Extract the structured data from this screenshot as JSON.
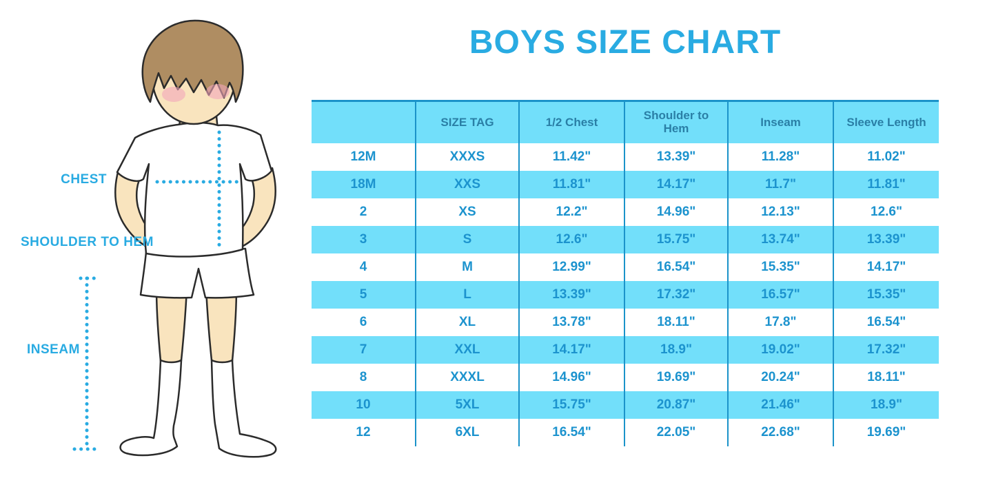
{
  "title": "BOYS SIZE CHART",
  "figure": {
    "labels": {
      "chest": "CHEST",
      "shoulder_to_hem": "SHOULDER TO HEM",
      "inseam": "INSEAM"
    }
  },
  "colors": {
    "accent_blue": "#29ABE2",
    "stripe_blue": "#72DFFA",
    "grid_blue": "#1B93C9",
    "header_text": "#2A7FA6",
    "cell_text": "#1C93CE",
    "skin": "#F9E4BE",
    "hair": "#AF8D62",
    "blush": "#F2A7BA"
  },
  "chart_data": {
    "type": "table",
    "title": "BOYS SIZE CHART",
    "columns": [
      "",
      "SIZE TAG",
      "1/2 Chest",
      "Shoulder to Hem",
      "Inseam",
      "Sleeve Length"
    ],
    "rows": [
      [
        "12M",
        "XXXS",
        "11.42\"",
        "13.39\"",
        "11.28\"",
        "11.02\""
      ],
      [
        "18M",
        "XXS",
        "11.81\"",
        "14.17\"",
        "11.7\"",
        "11.81\""
      ],
      [
        "2",
        "XS",
        "12.2\"",
        "14.96\"",
        "12.13\"",
        "12.6\""
      ],
      [
        "3",
        "S",
        "12.6\"",
        "15.75\"",
        "13.74\"",
        "13.39\""
      ],
      [
        "4",
        "M",
        "12.99\"",
        "16.54\"",
        "15.35\"",
        "14.17\""
      ],
      [
        "5",
        "L",
        "13.39\"",
        "17.32\"",
        "16.57\"",
        "15.35\""
      ],
      [
        "6",
        "XL",
        "13.78\"",
        "18.11\"",
        "17.8\"",
        "16.54\""
      ],
      [
        "7",
        "XXL",
        "14.17\"",
        "18.9\"",
        "19.02\"",
        "17.32\""
      ],
      [
        "8",
        "XXXL",
        "14.96\"",
        "19.69\"",
        "20.24\"",
        "18.11\""
      ],
      [
        "10",
        "5XL",
        "15.75\"",
        "20.87\"",
        "21.46\"",
        "18.9\""
      ],
      [
        "12",
        "6XL",
        "16.54\"",
        "22.05\"",
        "22.68\"",
        "19.69\""
      ]
    ],
    "row_stripe_pattern": "alternating white/light-blue starting white, header light-blue",
    "legend_position": "none",
    "grid": "vertical column separators only"
  }
}
